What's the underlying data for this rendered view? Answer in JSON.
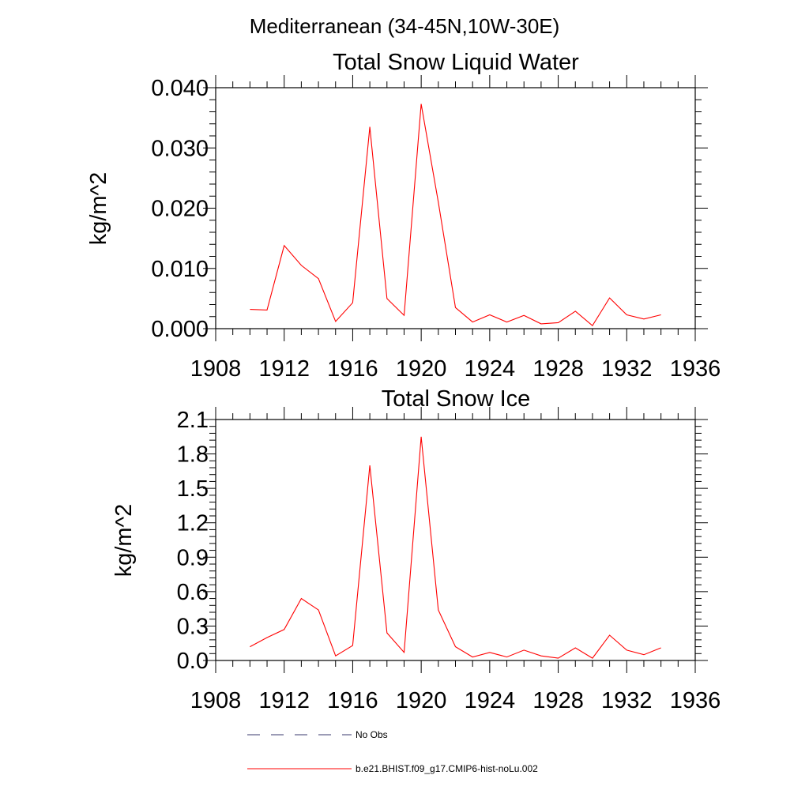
{
  "figure_title": "Mediterranean (34-45N,10W-30E)",
  "legend": [
    {
      "label": "No Obs",
      "color": "#3a3a6e",
      "style": "dashed"
    },
    {
      "label": "b.e21.BHIST.f09_g17.CMIP6-hist-noLu.002",
      "color": "#ff0000",
      "style": "solid"
    }
  ],
  "chart_data": [
    {
      "type": "line",
      "title": "Total Snow Liquid Water",
      "xlabel": "",
      "ylabel": "kg/m^2",
      "xlim": [
        1908,
        1936
      ],
      "ylim": [
        0,
        0.04
      ],
      "x_ticks": [
        "1908",
        "1912",
        "1916",
        "1920",
        "1924",
        "1928",
        "1932",
        "1936"
      ],
      "y_ticks": [
        "0.000",
        "0.010",
        "0.020",
        "0.030",
        "0.040"
      ],
      "x": [
        1910,
        1911,
        1912,
        1913,
        1914,
        1915,
        1916,
        1917,
        1918,
        1919,
        1920,
        1921,
        1922,
        1923,
        1924,
        1925,
        1926,
        1927,
        1928,
        1929,
        1930,
        1931,
        1932,
        1933,
        1934
      ],
      "series": [
        {
          "name": "b.e21.BHIST.f09_g17.CMIP6-hist-noLu.002",
          "color": "#ff0000",
          "values": [
            0.0032,
            0.0031,
            0.0138,
            0.0105,
            0.0083,
            0.0012,
            0.0043,
            0.0335,
            0.005,
            0.0022,
            0.0373,
            0.021,
            0.0035,
            0.0011,
            0.0023,
            0.0011,
            0.0022,
            0.0008,
            0.001,
            0.0029,
            0.0005,
            0.0051,
            0.0023,
            0.0016,
            0.0023
          ]
        }
      ]
    },
    {
      "type": "line",
      "title": "Total Snow Ice",
      "xlabel": "",
      "ylabel": "kg/m^2",
      "xlim": [
        1908,
        1936
      ],
      "ylim": [
        0,
        2.1
      ],
      "x_ticks": [
        "1908",
        "1912",
        "1916",
        "1920",
        "1924",
        "1928",
        "1932",
        "1936"
      ],
      "y_ticks": [
        "0.0",
        "0.3",
        "0.6",
        "0.9",
        "1.2",
        "1.5",
        "1.8",
        "2.1"
      ],
      "x": [
        1910,
        1911,
        1912,
        1913,
        1914,
        1915,
        1916,
        1917,
        1918,
        1919,
        1920,
        1921,
        1922,
        1923,
        1924,
        1925,
        1926,
        1927,
        1928,
        1929,
        1930,
        1931,
        1932,
        1933,
        1934
      ],
      "series": [
        {
          "name": "b.e21.BHIST.f09_g17.CMIP6-hist-noLu.002",
          "color": "#ff0000",
          "values": [
            0.12,
            0.2,
            0.27,
            0.54,
            0.44,
            0.04,
            0.13,
            1.7,
            0.24,
            0.07,
            1.95,
            0.44,
            0.12,
            0.03,
            0.07,
            0.03,
            0.09,
            0.04,
            0.02,
            0.11,
            0.02,
            0.22,
            0.09,
            0.05,
            0.11
          ]
        }
      ]
    }
  ]
}
